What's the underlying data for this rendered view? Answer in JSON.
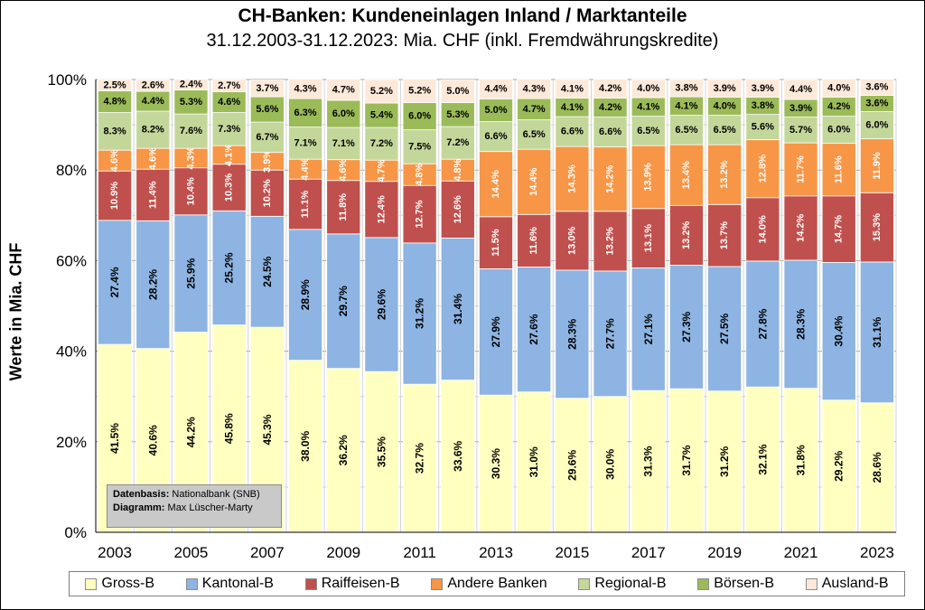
{
  "chart_data": {
    "type": "bar",
    "stacked": true,
    "title": "CH-Banken: Kundeneinlagen  Inland / Marktanteile",
    "subtitle": "31.12.2003-31.12.2023: Mia. CHF (inkl. Fremdwährungskredite)",
    "ylabel": "Werte in Mia. CHF",
    "ylim": [
      0,
      100
    ],
    "yticks": [
      "0%",
      "20%",
      "40%",
      "60%",
      "80%",
      "100%"
    ],
    "grid": true,
    "legend_position": "bottom",
    "categories": [
      "2003",
      "2004",
      "2005",
      "2006",
      "2007",
      "2008",
      "2009",
      "2010",
      "2011",
      "2012",
      "2013",
      "2014",
      "2015",
      "2016",
      "2017",
      "2018",
      "2019",
      "2020",
      "2021",
      "2022",
      "2023"
    ],
    "xtick_labels": [
      "2003",
      "",
      "2005",
      "",
      "2007",
      "",
      "2009",
      "",
      "2011",
      "",
      "2013",
      "",
      "2015",
      "",
      "2017",
      "",
      "2019",
      "",
      "2021",
      "",
      "2023"
    ],
    "series": [
      {
        "name": "Gross-B",
        "color": "#ffffc0",
        "labels": [
          "41.5%",
          "40.6%",
          "44.2%",
          "45.8%",
          "45.3%",
          "38.0%",
          "36.2%",
          "35.5%",
          "32.7%",
          "33.6%",
          "30.3%",
          "31.0%",
          "29.6%",
          "30.0%",
          "31.3%",
          "31.7%",
          "31.2%",
          "32.1%",
          "31.8%",
          "29.2%",
          "28.6%"
        ],
        "values": [
          41.5,
          40.6,
          44.2,
          45.8,
          45.3,
          38.0,
          36.2,
          35.5,
          32.7,
          33.6,
          30.3,
          31.0,
          29.6,
          30.0,
          31.3,
          31.7,
          31.2,
          32.1,
          31.8,
          29.2,
          28.6
        ]
      },
      {
        "name": "Kantonal-B",
        "color": "#8db4e2",
        "labels": [
          "27.4%",
          "28.2%",
          "25.9%",
          "25.2%",
          "24.5%",
          "28.9%",
          "29.7%",
          "29.6%",
          "31.2%",
          "31.4%",
          "27.9%",
          "27.6%",
          "28.3%",
          "27.7%",
          "27.1%",
          "27.3%",
          "27.5%",
          "27.8%",
          "28.3%",
          "30.4%",
          "31.1%"
        ],
        "values": [
          27.4,
          28.2,
          25.9,
          25.2,
          24.5,
          28.9,
          29.7,
          29.6,
          31.2,
          31.4,
          27.9,
          27.6,
          28.3,
          27.7,
          27.1,
          27.3,
          27.5,
          27.8,
          28.3,
          30.4,
          31.1
        ]
      },
      {
        "name": "Raiffeisen-B",
        "color": "#c0504d",
        "labels": [
          "10.9%",
          "11.4%",
          "10.4%",
          "10.3%",
          "10.2%",
          "11.1%",
          "11.8%",
          "12.4%",
          "12.7%",
          "12.6%",
          "11.5%",
          "11.6%",
          "13.0%",
          "13.2%",
          "13.1%",
          "13.2%",
          "13.7%",
          "14.0%",
          "14.2%",
          "14.7%",
          "15.3%"
        ],
        "values": [
          10.9,
          11.4,
          10.4,
          10.3,
          10.2,
          11.1,
          11.8,
          12.4,
          12.7,
          12.6,
          11.5,
          11.6,
          13.0,
          13.2,
          13.1,
          13.2,
          13.7,
          14.0,
          14.2,
          14.7,
          15.3
        ]
      },
      {
        "name": "Andere Banken",
        "color": "#f79646",
        "labels": [
          "4.6%",
          "4.6%",
          "4.3%",
          "4.1%",
          "3.9%",
          "4.4%",
          "4.6%",
          "4.7%",
          "4.8%",
          "4.8%",
          "14.4%",
          "14.4%",
          "14.3%",
          "14.2%",
          "13.9%",
          "13.4%",
          "13.2%",
          "12.8%",
          "11.7%",
          "11.6%",
          "11.9%"
        ],
        "values": [
          4.6,
          4.6,
          4.3,
          4.1,
          3.9,
          4.4,
          4.6,
          4.7,
          4.8,
          4.8,
          14.4,
          14.4,
          14.3,
          14.2,
          13.9,
          13.4,
          13.2,
          12.8,
          11.7,
          11.6,
          11.9
        ]
      },
      {
        "name": "Regional-B",
        "color": "#c4d79b",
        "labels": [
          "8.3%",
          "8.2%",
          "7.6%",
          "7.3%",
          "6.7%",
          "7.1%",
          "7.1%",
          "7.2%",
          "7.5%",
          "7.2%",
          "6.6%",
          "6.5%",
          "6.6%",
          "6.6%",
          "6.5%",
          "6.5%",
          "6.5%",
          "5.6%",
          "5.7%",
          "6.0%",
          "6.0%"
        ],
        "values": [
          8.3,
          8.2,
          7.6,
          7.3,
          6.7,
          7.1,
          7.1,
          7.2,
          7.5,
          7.2,
          6.6,
          6.5,
          6.6,
          6.6,
          6.5,
          6.5,
          6.5,
          5.6,
          5.7,
          6.0,
          6.0
        ]
      },
      {
        "name": "Börsen-B",
        "color": "#9bbb59",
        "labels": [
          "4.8%",
          "4.4%",
          "5.3%",
          "4.6%",
          "5.6%",
          "6.3%",
          "6.0%",
          "5.4%",
          "6.0%",
          "5.3%",
          "5.0%",
          "4.7%",
          "4.1%",
          "4.2%",
          "4.1%",
          "4.1%",
          "4.0%",
          "3.8%",
          "3.9%",
          "4.2%",
          "3.6%"
        ],
        "values": [
          4.8,
          4.4,
          5.3,
          4.6,
          5.6,
          6.3,
          6.0,
          5.4,
          6.0,
          5.3,
          5.0,
          4.7,
          4.1,
          4.2,
          4.1,
          4.1,
          4.0,
          3.8,
          3.9,
          4.2,
          3.6
        ]
      },
      {
        "name": "Ausland-B",
        "color": "#fde9d9",
        "labels": [
          "2.5%",
          "2.6%",
          "2.4%",
          "2.7%",
          "3.7%",
          "4.3%",
          "4.7%",
          "5.2%",
          "5.2%",
          "5.0%",
          "4.4%",
          "4.3%",
          "4.1%",
          "4.2%",
          "4.0%",
          "3.8%",
          "3.9%",
          "3.9%",
          "4.4%",
          "4.0%",
          "3.6%"
        ],
        "values": [
          2.5,
          2.6,
          2.4,
          2.7,
          3.7,
          4.3,
          4.7,
          5.2,
          5.2,
          5.0,
          4.4,
          4.3,
          4.1,
          4.2,
          4.0,
          3.8,
          3.9,
          3.9,
          4.4,
          4.0,
          3.6
        ]
      }
    ],
    "label_colors": [
      "#000000",
      "#000000",
      "#ffffff",
      "#ffffff",
      "#000000",
      "#000000",
      "#000000"
    ]
  },
  "source": {
    "label1": "Datenbasis:",
    "value1": "Nationalbank (SNB)",
    "label2": "Diagramm:",
    "value2": "Max Lüscher-Marty"
  }
}
